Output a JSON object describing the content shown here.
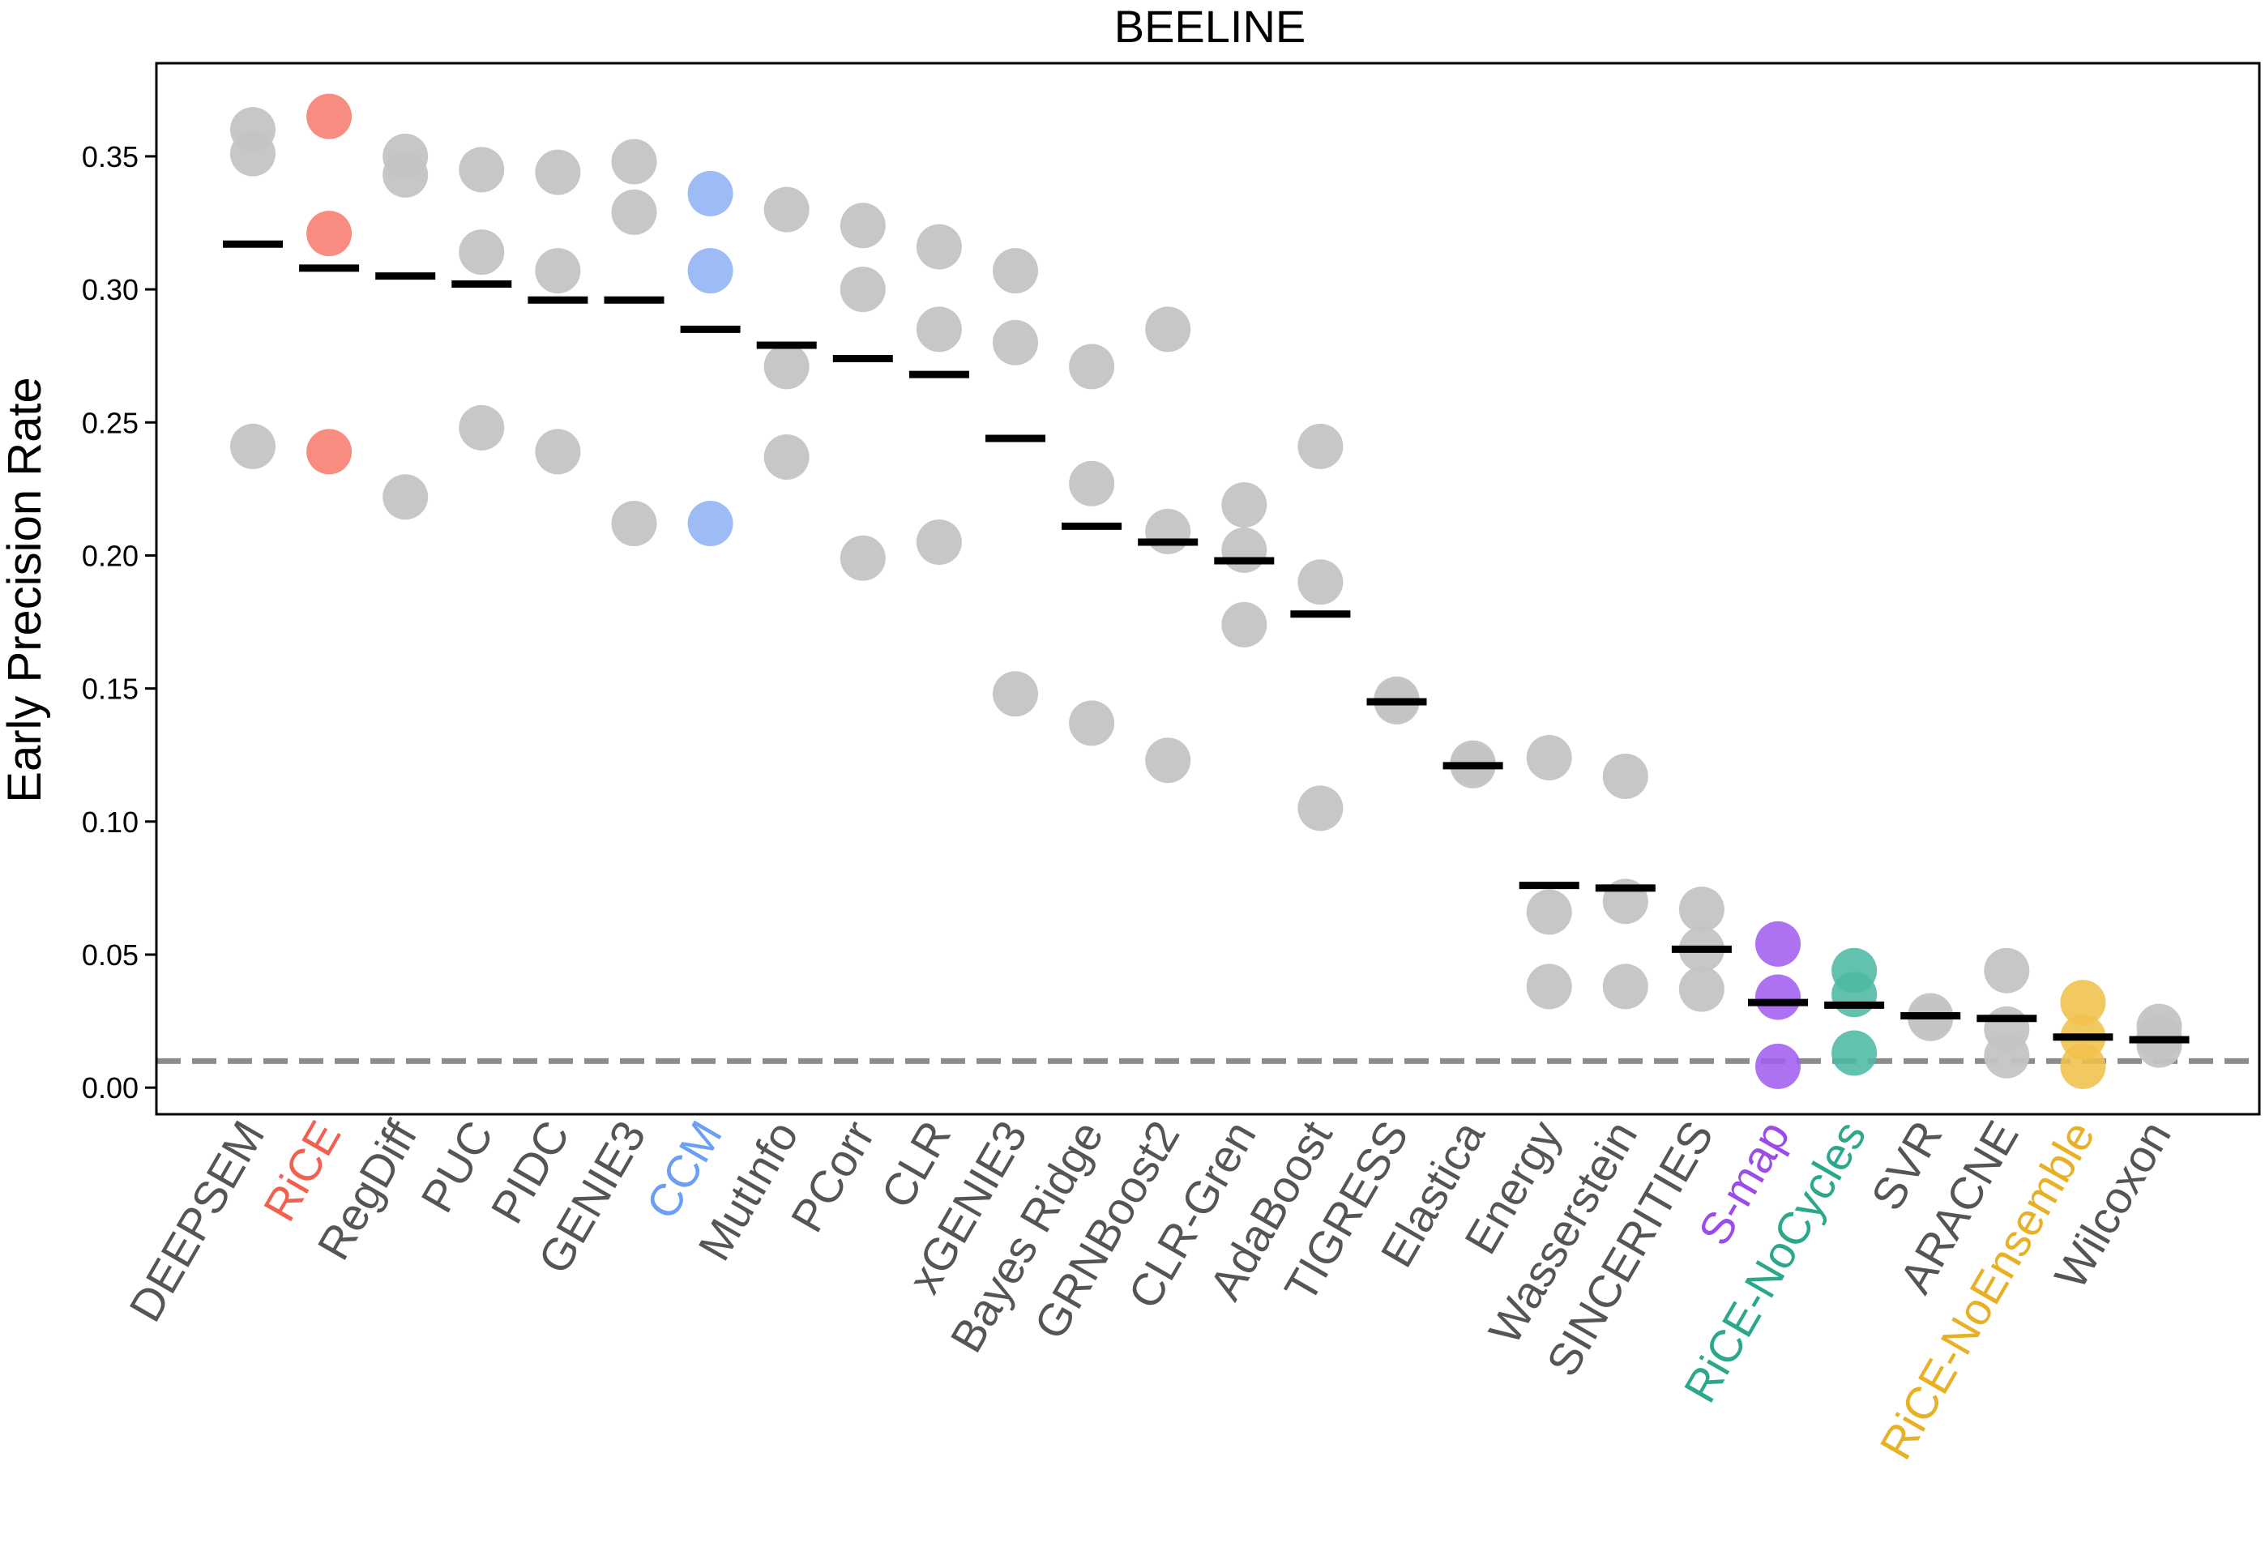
{
  "chart_data": {
    "type": "scatter",
    "title": "BEELINE",
    "xlabel": "",
    "ylabel": "Early Precision Rate",
    "ylim": [
      -0.01,
      0.385
    ],
    "yticks": [
      "0.00",
      "0.05",
      "0.10",
      "0.15",
      "0.20",
      "0.25",
      "0.30",
      "0.35"
    ],
    "reference_line": {
      "y": 0.01,
      "style": "dashed",
      "color": "#8c8c8c"
    },
    "grid": false,
    "legend": "none",
    "default_point_color": "#c4c4c4",
    "median_color": "#000000",
    "label_default_color": "#555555",
    "categories": [
      {
        "name": "DEEPSEM",
        "points": [
          0.36,
          0.351,
          0.241
        ],
        "median": 0.317
      },
      {
        "name": "RiCE",
        "points": [
          0.365,
          0.321,
          0.239
        ],
        "median": 0.308,
        "color": "#f87c6e",
        "label_color": "#f2604f"
      },
      {
        "name": "RegDiff",
        "points": [
          0.35,
          0.343,
          0.222
        ],
        "median": 0.305
      },
      {
        "name": "PUC",
        "points": [
          0.345,
          0.314,
          0.248
        ],
        "median": 0.302
      },
      {
        "name": "PIDC",
        "points": [
          0.344,
          0.307,
          0.239
        ],
        "median": 0.296
      },
      {
        "name": "GENIE3",
        "points": [
          0.348,
          0.329,
          0.212
        ],
        "median": 0.296
      },
      {
        "name": "CCM",
        "points": [
          0.336,
          0.307,
          0.212
        ],
        "median": 0.285,
        "color": "#8fb3f5",
        "label_color": "#6b9ef5"
      },
      {
        "name": "MutInfo",
        "points": [
          0.33,
          0.271,
          0.237
        ],
        "median": 0.279
      },
      {
        "name": "PCorr",
        "points": [
          0.324,
          0.3,
          0.199
        ],
        "median": 0.274
      },
      {
        "name": "CLR",
        "points": [
          0.316,
          0.285,
          0.205
        ],
        "median": 0.268
      },
      {
        "name": "xGENIE3",
        "points": [
          0.307,
          0.28,
          0.148
        ],
        "median": 0.244
      },
      {
        "name": "Bayes Ridge",
        "points": [
          0.271,
          0.227,
          0.137
        ],
        "median": 0.211
      },
      {
        "name": "GRNBoost2",
        "points": [
          0.285,
          0.209,
          0.123
        ],
        "median": 0.205
      },
      {
        "name": "CLR-Gren",
        "points": [
          0.219,
          0.202,
          0.174
        ],
        "median": 0.198
      },
      {
        "name": "AdaBoost",
        "points": [
          0.241,
          0.19,
          0.105
        ],
        "median": 0.178
      },
      {
        "name": "TIGRESS",
        "points": [
          0.146,
          0.145
        ],
        "median": 0.145
      },
      {
        "name": "Elastica",
        "points": [
          0.122,
          0.121
        ],
        "median": 0.121
      },
      {
        "name": "Energy",
        "points": [
          0.124,
          0.066,
          0.038
        ],
        "median": 0.076
      },
      {
        "name": "Wasserstein",
        "points": [
          0.117,
          0.07,
          0.038
        ],
        "median": 0.075
      },
      {
        "name": "SINCERITIES",
        "points": [
          0.067,
          0.052,
          0.037
        ],
        "median": 0.052
      },
      {
        "name": "S-map",
        "points": [
          0.054,
          0.034,
          0.008
        ],
        "median": 0.032,
        "color": "#a05ef0",
        "label_color": "#9b4be8"
      },
      {
        "name": "RiCE-NoCycles",
        "points": [
          0.044,
          0.035,
          0.013
        ],
        "median": 0.031,
        "color": "#4dbaa4",
        "label_color": "#2ba88c"
      },
      {
        "name": "SVR",
        "points": [
          0.027,
          0.026
        ],
        "median": 0.027
      },
      {
        "name": "ARACNE",
        "points": [
          0.044,
          0.022,
          0.012
        ],
        "median": 0.026
      },
      {
        "name": "RiCE-NoEnsemble",
        "points": [
          0.032,
          0.019,
          0.008
        ],
        "median": 0.019,
        "color": "#f0c04a",
        "label_color": "#e8b024"
      },
      {
        "name": "Wilcoxon",
        "points": [
          0.023,
          0.019,
          0.016
        ],
        "median": 0.018
      }
    ]
  }
}
